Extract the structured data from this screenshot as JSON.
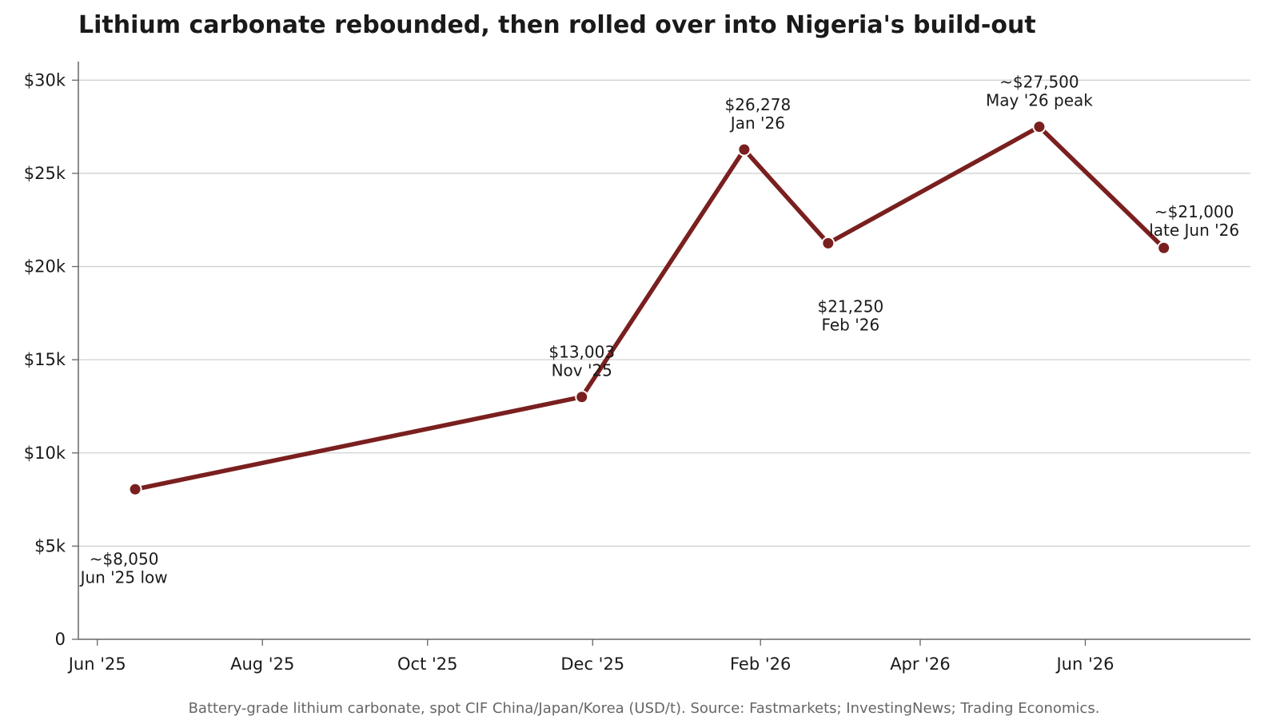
{
  "chart_data": {
    "type": "line",
    "title": "Lithium carbonate rebounded, then rolled over into Nigeria's build-out",
    "footnote": "Battery-grade lithium carbonate, spot CIF China/Japan/Korea (USD/t). Source: Fastmarkets; InvestingNews; Trading Economics.",
    "xlabel": "",
    "ylabel": "",
    "ylim": [
      0,
      31000
    ],
    "xlim": [
      "2025-05-25",
      "2026-08-01"
    ],
    "grid": "horizontal",
    "line_color": "#7a1f1f",
    "y_ticks": [
      {
        "value": 0,
        "label": "0"
      },
      {
        "value": 5000,
        "label": "$5k"
      },
      {
        "value": 10000,
        "label": "$10k"
      },
      {
        "value": 15000,
        "label": "$15k"
      },
      {
        "value": 20000,
        "label": "$20k"
      },
      {
        "value": 25000,
        "label": "$25k"
      },
      {
        "value": 30000,
        "label": "$30k"
      }
    ],
    "x_ticks": [
      {
        "date": "2025-06-01",
        "label": "Jun '25"
      },
      {
        "date": "2025-08-01",
        "label": "Aug '25"
      },
      {
        "date": "2025-10-01",
        "label": "Oct '25"
      },
      {
        "date": "2025-12-01",
        "label": "Dec '25"
      },
      {
        "date": "2026-02-01",
        "label": "Feb '26"
      },
      {
        "date": "2026-04-01",
        "label": "Apr '26"
      },
      {
        "date": "2026-06-01",
        "label": "Jun '26"
      }
    ],
    "series": [
      {
        "points": [
          {
            "x": "2025-06-15",
            "y": 8050,
            "label_value": "~$8,050",
            "label_note": "Jun '25 low",
            "label_pos": "below"
          },
          {
            "x": "2025-11-27",
            "y": 13003,
            "label_value": "$13,003",
            "label_note": "Nov '25",
            "label_pos": "above"
          },
          {
            "x": "2026-01-26",
            "y": 26278,
            "label_value": "$26,278",
            "label_note": "Jan '26",
            "label_pos": "above"
          },
          {
            "x": "2026-02-26",
            "y": 21250,
            "label_value": "$21,250",
            "label_note": "Feb '26",
            "label_pos": "below"
          },
          {
            "x": "2026-05-15",
            "y": 27500,
            "label_value": "~$27,500",
            "label_note": "May '26 peak",
            "label_pos": "above"
          },
          {
            "x": "2026-06-30",
            "y": 21000,
            "label_value": "~$21,000",
            "label_note": "late Jun '26",
            "label_pos": "above"
          }
        ]
      }
    ]
  }
}
